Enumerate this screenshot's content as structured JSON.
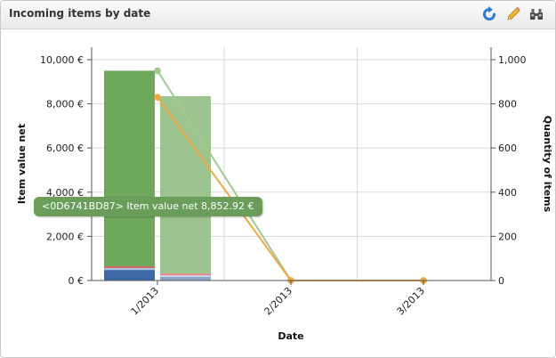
{
  "panel": {
    "title": "Incoming items by date",
    "tools": [
      {
        "name": "refresh-icon",
        "color": "#2a7fd4"
      },
      {
        "name": "pencil-icon",
        "color": "#e8a317"
      },
      {
        "name": "binoculars-icon",
        "color": "#444444"
      }
    ]
  },
  "chart_data": {
    "type": "bar",
    "categories": [
      "1/2013",
      "2/2013",
      "3/2013"
    ],
    "xlabel": "Date",
    "ylabel": "Item value net",
    "y2label": "Quantity of items",
    "ylim": [
      0,
      10000
    ],
    "y2lim": [
      0,
      1000
    ],
    "y_ticks": [
      "0 €",
      "2,000 €",
      "4,000 €",
      "6,000 €",
      "8,000 €",
      "10,000 €"
    ],
    "y2_ticks": [
      "0",
      "200",
      "400",
      "600",
      "800",
      "1,000"
    ],
    "grid": true,
    "bar_groups": [
      {
        "category": "1/2013",
        "stacks": [
          [
            {
              "value": 480,
              "color": "#3d68a8"
            },
            {
              "value": 90,
              "color": "#a8c2e0"
            },
            {
              "value": 70,
              "color": "#d94f4f"
            },
            {
              "value": 8860,
              "color": "#6ea85a"
            }
          ],
          [
            {
              "value": 170,
              "color": "#8ea5cc"
            },
            {
              "value": 60,
              "color": "#cdd9ec"
            },
            {
              "value": 90,
              "color": "#e48a8a"
            },
            {
              "value": 8030,
              "color": "#9dc48f"
            }
          ]
        ]
      }
    ],
    "lines": [
      {
        "axis": "right",
        "color": "#9fca8f",
        "values": [
          950,
          0,
          0
        ]
      },
      {
        "axis": "right",
        "color": "#f0a845",
        "values": [
          830,
          0,
          0
        ]
      }
    ],
    "tooltip": "<0D6741BD87> Item value net 8,852.92 €"
  }
}
